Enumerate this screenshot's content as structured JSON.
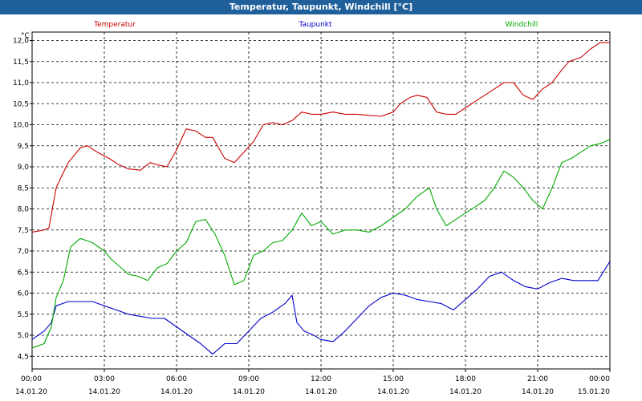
{
  "window": {
    "title": "Temperatur, Taupunkt, Windchill [°C]"
  },
  "chart_data": {
    "type": "line",
    "unit_label": "°C",
    "ylim": [
      4.2,
      12.2
    ],
    "yticks": [
      "4,5",
      "5,0",
      "5,5",
      "6,0",
      "6,5",
      "7,0",
      "7,5",
      "8,0",
      "8,5",
      "9,0",
      "9,5",
      "10,0",
      "10,5",
      "11,0",
      "11,5",
      "12,0"
    ],
    "xlim_hours": [
      0,
      24
    ],
    "xticks": [
      {
        "time": "00:00",
        "date": "14.01.20"
      },
      {
        "time": "03:00",
        "date": "14.01.20"
      },
      {
        "time": "06:00",
        "date": "14.01.20"
      },
      {
        "time": "09:00",
        "date": "14.01.20"
      },
      {
        "time": "12:00",
        "date": "14.01.20"
      },
      {
        "time": "15:00",
        "date": "14.01.20"
      },
      {
        "time": "18:00",
        "date": "14.01.20"
      },
      {
        "time": "21:00",
        "date": "14.01.20"
      },
      {
        "time": "00:00",
        "date": "15.01.20"
      }
    ],
    "grid": true,
    "series": [
      {
        "name": "Temperatur",
        "color": "#cc0000",
        "x": [
          0,
          0.5,
          0.7,
          1.0,
          1.2,
          1.5,
          2.0,
          2.3,
          2.7,
          3.2,
          3.6,
          4.0,
          4.5,
          4.9,
          5.2,
          5.6,
          6.0,
          6.4,
          6.8,
          7.2,
          7.5,
          8.0,
          8.4,
          8.8,
          9.2,
          9.6,
          10.0,
          10.4,
          10.8,
          11.2,
          11.6,
          12.0,
          12.5,
          13.0,
          13.5,
          14.0,
          14.5,
          15.0,
          15.3,
          15.7,
          16.0,
          16.4,
          16.8,
          17.2,
          17.6,
          18.0,
          18.4,
          18.8,
          19.2,
          19.6,
          20.0,
          20.4,
          20.8,
          21.2,
          21.6,
          22.0,
          22.3,
          22.8,
          23.2,
          23.6,
          24.0
        ],
        "values": [
          7.45,
          7.5,
          7.55,
          8.5,
          8.75,
          9.1,
          9.45,
          9.5,
          9.35,
          9.2,
          9.05,
          8.95,
          8.92,
          9.1,
          9.05,
          9.0,
          9.4,
          9.9,
          9.85,
          9.7,
          9.7,
          9.2,
          9.1,
          9.35,
          9.6,
          10.0,
          10.05,
          10.0,
          10.1,
          10.3,
          10.25,
          10.25,
          10.3,
          10.25,
          10.25,
          10.22,
          10.2,
          10.3,
          10.5,
          10.65,
          10.7,
          10.65,
          10.3,
          10.25,
          10.25,
          10.4,
          10.55,
          10.7,
          10.85,
          11.0,
          11.0,
          10.7,
          10.6,
          10.85,
          11.0,
          11.3,
          11.5,
          11.6,
          11.8,
          11.95,
          11.95
        ]
      },
      {
        "name": "Taupunkt",
        "color": "#0000cc",
        "x": [
          0,
          0.5,
          0.8,
          1.0,
          1.5,
          2.0,
          2.5,
          3.0,
          3.5,
          4.0,
          4.5,
          5.0,
          5.5,
          6.0,
          6.5,
          7.0,
          7.5,
          8.0,
          8.5,
          9.0,
          9.5,
          10.0,
          10.5,
          10.8,
          11.0,
          11.3,
          11.7,
          12.0,
          12.5,
          13.0,
          13.5,
          14.0,
          14.5,
          15.0,
          15.5,
          16.0,
          16.5,
          17.0,
          17.5,
          18.0,
          18.5,
          19.0,
          19.5,
          20.0,
          20.5,
          21.0,
          21.5,
          22.0,
          22.5,
          23.0,
          23.5,
          24.0
        ],
        "values": [
          4.9,
          5.1,
          5.3,
          5.7,
          5.8,
          5.8,
          5.8,
          5.7,
          5.6,
          5.5,
          5.45,
          5.4,
          5.4,
          5.2,
          5.0,
          4.8,
          4.55,
          4.8,
          4.8,
          5.1,
          5.4,
          5.55,
          5.75,
          5.95,
          5.3,
          5.1,
          5.0,
          4.9,
          4.85,
          5.1,
          5.4,
          5.7,
          5.9,
          6.0,
          5.95,
          5.85,
          5.8,
          5.75,
          5.6,
          5.85,
          6.1,
          6.4,
          6.5,
          6.3,
          6.15,
          6.1,
          6.25,
          6.35,
          6.3,
          6.3,
          6.3,
          6.75
        ]
      },
      {
        "name": "Windchill",
        "color": "#00aa00",
        "x": [
          0,
          0.5,
          0.8,
          1.0,
          1.3,
          1.6,
          2.0,
          2.5,
          3.0,
          3.3,
          3.7,
          4.0,
          4.4,
          4.8,
          5.2,
          5.6,
          6.0,
          6.4,
          6.8,
          7.2,
          7.6,
          8.0,
          8.4,
          8.8,
          9.2,
          9.6,
          10.0,
          10.4,
          10.8,
          11.0,
          11.2,
          11.6,
          12.0,
          12.5,
          13.0,
          13.5,
          14.0,
          14.5,
          15.0,
          15.5,
          16.0,
          16.5,
          16.8,
          17.2,
          17.6,
          18.0,
          18.4,
          18.8,
          19.2,
          19.6,
          20.0,
          20.4,
          20.8,
          21.2,
          21.6,
          22.0,
          22.4,
          22.8,
          23.2,
          23.6,
          24.0
        ],
        "values": [
          4.7,
          4.8,
          5.2,
          5.9,
          6.3,
          7.1,
          7.3,
          7.2,
          7.0,
          6.8,
          6.6,
          6.45,
          6.4,
          6.3,
          6.6,
          6.7,
          7.0,
          7.2,
          7.7,
          7.75,
          7.4,
          6.9,
          6.2,
          6.3,
          6.9,
          7.0,
          7.2,
          7.25,
          7.5,
          7.7,
          7.9,
          7.6,
          7.7,
          7.4,
          7.5,
          7.5,
          7.45,
          7.6,
          7.8,
          8.0,
          8.3,
          8.5,
          8.0,
          7.6,
          7.75,
          7.9,
          8.05,
          8.2,
          8.5,
          8.9,
          8.75,
          8.5,
          8.2,
          8.0,
          8.5,
          9.1,
          9.2,
          9.35,
          9.5,
          9.55,
          9.65
        ]
      }
    ]
  }
}
